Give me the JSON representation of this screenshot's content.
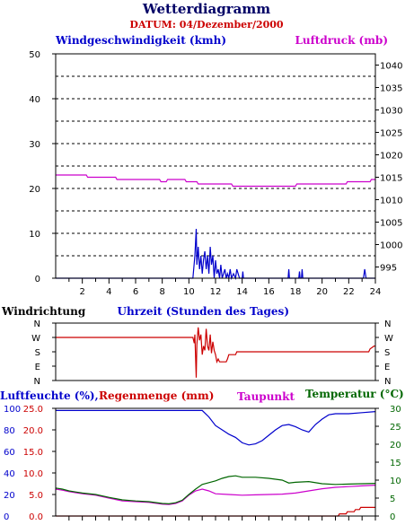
{
  "header": {
    "title": "Wetterdiagramm",
    "subtitle": "DATUM: 04/Dezember/2000"
  },
  "colors": {
    "wind": "#0000cc",
    "pressure": "#cc00cc",
    "direction": "#cc0000",
    "humidity": "#0000cc",
    "rain": "#cc0000",
    "dewpoint": "#cc00cc",
    "temperature": "#006600",
    "title": "#000066",
    "subtitle": "#cc0000"
  },
  "chart_data": [
    {
      "type": "line",
      "xlabel": "Uhrzeit (Stunden des Tages)",
      "xlim": [
        0,
        24
      ],
      "x_ticks": [
        "2",
        "4",
        "6",
        "8",
        "10",
        "12",
        "14",
        "16",
        "18",
        "20",
        "22",
        "24"
      ],
      "left_label": "Windgeschwindigkeit (kmh)",
      "right_label": "Luftdruck (mb)",
      "left_ticks": [
        "0",
        "10",
        "20",
        "30",
        "40",
        "50"
      ],
      "left_ylim": [
        0,
        50
      ],
      "right_ticks": [
        "995",
        "1000",
        "1005",
        "1010",
        "1015",
        "1020",
        "1025",
        "1030",
        "1035",
        "1040"
      ],
      "right_ylim": [
        992.5,
        1042.5
      ],
      "grid": true,
      "series": [
        {
          "name": "Windgeschwindigkeit (kmh)",
          "axis": "left",
          "x": [
            0,
            10.3,
            10.45,
            10.55,
            10.6,
            10.7,
            10.8,
            10.9,
            11.0,
            11.1,
            11.2,
            11.3,
            11.4,
            11.5,
            11.6,
            11.7,
            11.8,
            11.9,
            12.0,
            12.1,
            12.2,
            12.3,
            12.4,
            12.5,
            12.6,
            12.7,
            12.8,
            12.9,
            13.0,
            13.1,
            13.2,
            13.35,
            13.5,
            13.6,
            13.8,
            14.0,
            14.05,
            14.1,
            17.45,
            17.5,
            17.55,
            18.25,
            18.3,
            18.35,
            18.45,
            18.5,
            18.55,
            23.1,
            23.2,
            23.3,
            24
          ],
          "y": [
            0,
            0,
            5,
            11,
            3,
            7,
            2,
            5,
            1,
            4,
            6,
            2,
            5,
            1,
            7,
            3,
            5,
            0,
            4,
            1,
            2,
            0,
            3,
            0,
            1,
            2,
            0,
            1,
            0,
            2,
            0,
            1,
            0,
            2,
            0,
            0,
            1.5,
            0,
            0,
            2,
            0,
            0,
            1.5,
            0,
            0,
            2,
            0,
            0,
            2,
            0,
            0
          ]
        },
        {
          "name": "Luftdruck (mb)",
          "axis": "right",
          "x": [
            0,
            2.3,
            2.4,
            4.5,
            4.6,
            7.8,
            7.9,
            8.3,
            8.4,
            9.7,
            9.8,
            10.6,
            10.7,
            13.2,
            13.3,
            18.0,
            18.1,
            21.8,
            21.9,
            23.6,
            23.7,
            24
          ],
          "y": [
            1015.5,
            1015.5,
            1015.0,
            1015.0,
            1014.5,
            1014.5,
            1014.0,
            1014.0,
            1014.5,
            1014.5,
            1014.0,
            1014.0,
            1013.5,
            1013.5,
            1013.0,
            1013.0,
            1013.5,
            1013.5,
            1014.0,
            1014.0,
            1014.5,
            1014.5
          ]
        }
      ]
    },
    {
      "type": "line",
      "ylabel": "Windrichtung",
      "xlim": [
        0,
        24
      ],
      "categories": [
        "N",
        "W",
        "S",
        "E",
        "N"
      ],
      "series": [
        {
          "name": "Windrichtung",
          "x": [
            0,
            10.3,
            10.4,
            10.45,
            10.55,
            10.6,
            10.7,
            10.8,
            10.9,
            11.0,
            11.1,
            11.2,
            11.3,
            11.4,
            11.5,
            11.6,
            11.7,
            11.8,
            11.9,
            12.0,
            12.1,
            12.2,
            12.3,
            12.5,
            12.8,
            12.9,
            13.0,
            13.5,
            13.6,
            23.5,
            23.6,
            23.9,
            24
          ],
          "y": [
            1,
            1,
            1.4,
            0.8,
            3.8,
            1.5,
            0.3,
            1.2,
            0.8,
            2.2,
            1.6,
            1.9,
            0.4,
            1.6,
            1.9,
            0.8,
            2.1,
            1.3,
            1.9,
            2.2,
            2.7,
            2.5,
            2.7,
            2.7,
            2.7,
            2.5,
            2.2,
            2.2,
            2,
            2,
            1.8,
            1.6,
            1.6
          ]
        }
      ]
    },
    {
      "type": "line",
      "left_label_1": "Luftfeuchte (%),",
      "left_label_2": "Regenmenge (mm)",
      "center_label": "Taupunkt",
      "right_label": "Temperatur (°C)",
      "xlim": [
        0,
        24
      ],
      "humidity_ticks": [
        "0",
        "20",
        "40",
        "60",
        "80",
        "100"
      ],
      "humidity_ylim": [
        0,
        100
      ],
      "rain_ticks": [
        "0.0",
        "5.0",
        "10.0",
        "15.0",
        "20.0",
        "25.0"
      ],
      "rain_ylim": [
        0,
        25
      ],
      "temp_ticks": [
        "0",
        "5",
        "10",
        "15",
        "20",
        "25",
        "30"
      ],
      "temp_ylim": [
        0,
        30
      ],
      "series": [
        {
          "name": "Luftfeuchte (%)",
          "axis": "humidity",
          "x": [
            0,
            10,
            10.5,
            11,
            11.5,
            12,
            12.5,
            13,
            13.5,
            14,
            14.5,
            15,
            15.5,
            16,
            16.5,
            17,
            17.5,
            18,
            18.5,
            19,
            19.5,
            20,
            20.5,
            21,
            22,
            23,
            24
          ],
          "y": [
            98,
            98,
            98,
            98,
            92,
            84,
            80,
            76,
            73,
            68,
            66,
            67,
            70,
            75,
            80,
            84,
            85,
            83,
            80,
            78,
            85,
            90,
            94,
            95,
            95,
            96,
            97
          ]
        },
        {
          "name": "Regenmenge (mm)",
          "axis": "rain",
          "x": [
            0,
            21.2,
            21.3,
            21.8,
            21.9,
            22.4,
            22.5,
            22.8,
            22.9,
            24
          ],
          "y": [
            0,
            0,
            0.5,
            0.5,
            1.0,
            1.0,
            1.5,
            1.5,
            2.0,
            2.0
          ]
        },
        {
          "name": "Taupunkt",
          "axis": "temperature",
          "x": [
            0,
            0.5,
            1,
            1.5,
            2,
            3,
            4,
            5,
            6,
            7,
            8,
            8.5,
            9,
            9.5,
            10,
            10.5,
            11,
            11.5,
            12,
            13,
            14,
            15,
            16,
            17,
            18,
            19,
            20,
            21,
            22,
            23,
            24
          ],
          "y": [
            7.5,
            7.2,
            6.8,
            6.5,
            6.2,
            5.8,
            5.0,
            4.2,
            4.0,
            3.8,
            3.3,
            3.2,
            3.5,
            4.2,
            5.8,
            7.0,
            7.5,
            7.0,
            6.2,
            6.0,
            5.8,
            5.9,
            6.0,
            6.1,
            6.4,
            7.0,
            7.6,
            8.0,
            8.2,
            8.4,
            8.6
          ]
        },
        {
          "name": "Temperatur (°C)",
          "axis": "temperature",
          "x": [
            0,
            0.5,
            1,
            1.5,
            2,
            3,
            4,
            5,
            6,
            7,
            8,
            8.5,
            9,
            9.5,
            10,
            10.5,
            11,
            11.5,
            12,
            12.5,
            13,
            13.5,
            14,
            15,
            16,
            17,
            17.5,
            18,
            19,
            20,
            21,
            22,
            23,
            24
          ],
          "y": [
            7.8,
            7.5,
            7.0,
            6.7,
            6.4,
            6.0,
            5.2,
            4.5,
            4.2,
            4.0,
            3.5,
            3.4,
            3.7,
            4.4,
            6.0,
            7.5,
            8.8,
            9.3,
            9.8,
            10.5,
            11.0,
            11.2,
            10.8,
            10.8,
            10.5,
            10.0,
            9.2,
            9.4,
            9.6,
            9.0,
            8.8,
            8.9,
            9.0,
            9.1
          ]
        }
      ]
    }
  ]
}
